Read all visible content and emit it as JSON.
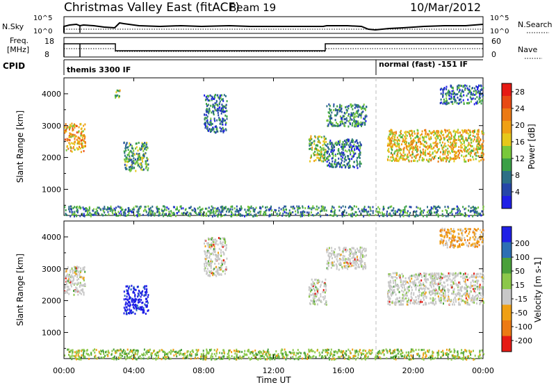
{
  "header": {
    "title": "Christmas Valley East (fitACF)",
    "beam": "Beam 19",
    "date": "10/Mar/2012"
  },
  "nsky_panel": {
    "left_label": "N.Sky",
    "right_label": "N.Search",
    "left_ticks": [
      "10^5",
      "10^0"
    ],
    "right_ticks": [
      "10^5",
      "10^0"
    ]
  },
  "freq_panel": {
    "left_label_1": "Freq.",
    "left_label_2": "[MHz]",
    "right_label": "Nave",
    "left_ticks": [
      "18",
      "8"
    ],
    "right_ticks": [
      "60",
      "0"
    ]
  },
  "cpid": {
    "label": "CPID",
    "mode_1": "themis 3300 IF",
    "mode_2": "normal (fast) -151 IF"
  },
  "x_axis": {
    "label": "Time UT",
    "ticks": [
      "00:00",
      "04:00",
      "08:00",
      "12:00",
      "16:00",
      "20:00",
      "00:00"
    ]
  },
  "power_panel": {
    "ylabel": "Slant Range [km]",
    "yticks": [
      "1000",
      "2000",
      "3000",
      "4000"
    ],
    "colorbar_label": "Power [dB]",
    "colorbar_ticks": [
      "4",
      "8",
      "12",
      "16",
      "20",
      "24",
      "28"
    ],
    "colors": [
      "#1f1fe6",
      "#2647a8",
      "#2c6f86",
      "#3aa046",
      "#78c83a",
      "#e6c81a",
      "#f0a014",
      "#ec7a14",
      "#e84a14",
      "#e61a14"
    ]
  },
  "velocity_panel": {
    "ylabel": "Slant Range [km]",
    "yticks": [
      "1000",
      "2000",
      "3000",
      "4000"
    ],
    "colorbar_label": "Velocity [m s-1]",
    "colorbar_ticks": [
      "200",
      "100",
      "50",
      "15",
      "-15",
      "-50",
      "-100",
      "-200"
    ],
    "colors": [
      "#1f1fe6",
      "#2c6fb4",
      "#4aa03a",
      "#8cc84a",
      "#c8c8c8",
      "#f0a014",
      "#ec7a14",
      "#e61a14"
    ]
  },
  "chart_data": [
    {
      "type": "heatmap",
      "title": "Power",
      "x_range_hours": [
        0,
        24
      ],
      "y_range_km": [
        180,
        4500
      ],
      "clusters": [
        {
          "t0": 0.0,
          "t1": 1.2,
          "r0": 2200,
          "r1": 3100,
          "level": 20
        },
        {
          "t0": 2.9,
          "t1": 3.2,
          "r0": 3900,
          "r1": 4200,
          "level": 12
        },
        {
          "t0": 3.4,
          "t1": 4.8,
          "r0": 1600,
          "r1": 2500,
          "level": 10
        },
        {
          "t0": 8.0,
          "t1": 9.3,
          "r0": 2800,
          "r1": 4000,
          "level": 6
        },
        {
          "t0": 14.0,
          "t1": 15.0,
          "r0": 1900,
          "r1": 2700,
          "level": 14
        },
        {
          "t0": 15.0,
          "t1": 17.3,
          "r0": 3000,
          "r1": 3700,
          "level": 8
        },
        {
          "t0": 15.0,
          "t1": 17.0,
          "r0": 1700,
          "r1": 2600,
          "level": 6
        },
        {
          "t0": 18.5,
          "t1": 24.0,
          "r0": 1900,
          "r1": 2900,
          "level": 18
        },
        {
          "t0": 21.5,
          "t1": 24.0,
          "r0": 3700,
          "r1": 4300,
          "level": 6
        },
        {
          "t0": 0.0,
          "t1": 24.0,
          "r0": 180,
          "r1": 500,
          "level": 8
        }
      ]
    },
    {
      "type": "heatmap",
      "title": "Velocity",
      "x_range_hours": [
        0,
        24
      ],
      "y_range_km": [
        180,
        4500
      ],
      "clusters": [
        {
          "t0": 0.0,
          "t1": 1.2,
          "r0": 2200,
          "r1": 3100,
          "level": 0
        },
        {
          "t0": 3.4,
          "t1": 4.8,
          "r0": 1600,
          "r1": 2500,
          "level": 200
        },
        {
          "t0": 8.0,
          "t1": 9.3,
          "r0": 2800,
          "r1": 4000,
          "level": 0
        },
        {
          "t0": 14.0,
          "t1": 15.0,
          "r0": 1900,
          "r1": 2700,
          "level": 0
        },
        {
          "t0": 15.0,
          "t1": 17.3,
          "r0": 3000,
          "r1": 3700,
          "level": 0
        },
        {
          "t0": 18.5,
          "t1": 24.0,
          "r0": 1900,
          "r1": 2900,
          "level": 0
        },
        {
          "t0": 21.5,
          "t1": 24.0,
          "r0": 3700,
          "r1": 4300,
          "level": -50
        },
        {
          "t0": 0.0,
          "t1": 24.0,
          "r0": 180,
          "r1": 500,
          "level": 30
        }
      ]
    }
  ]
}
